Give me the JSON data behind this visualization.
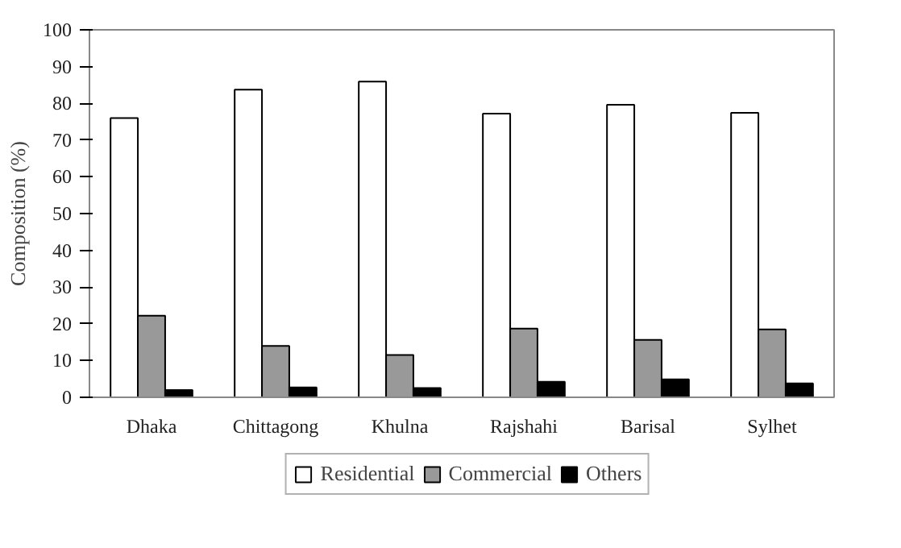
{
  "chart_data": {
    "type": "bar",
    "ylabel": "Composition (%)",
    "categories": [
      "Dhaka",
      "Chittagong",
      "Khulna",
      "Rajshahi",
      "Barisal",
      "Sylhet"
    ],
    "series": [
      {
        "name": "Residential",
        "color": "#ffffff",
        "values": [
          76,
          83.7,
          85.9,
          77.2,
          79.6,
          77.4
        ]
      },
      {
        "name": "Commercial",
        "color": "#999999",
        "values": [
          22.2,
          14,
          11.5,
          18.7,
          15.6,
          18.5
        ]
      },
      {
        "name": "Others",
        "color": "#000000",
        "values": [
          2,
          2.7,
          2.5,
          4.2,
          4.9,
          3.8
        ]
      }
    ],
    "ylim": [
      0,
      100
    ],
    "yticks": [
      0,
      10,
      20,
      30,
      40,
      50,
      60,
      70,
      80,
      90,
      100
    ],
    "grid": false,
    "legend": "bottom"
  }
}
